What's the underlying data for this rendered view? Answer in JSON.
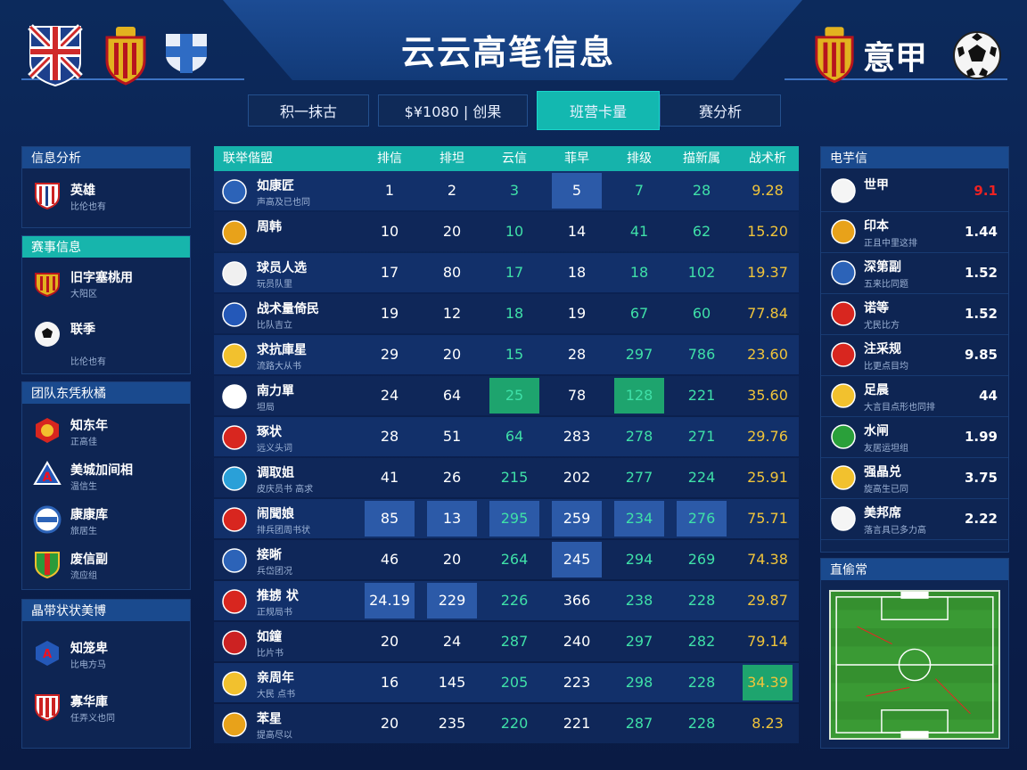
{
  "header": {
    "title": "云云高笔信息",
    "right_label": "意甲"
  },
  "tabs": [
    {
      "label": "积一抹古",
      "active": false
    },
    {
      "label": "$¥1080 | 创果",
      "active": false
    },
    {
      "label": "班营卡量",
      "active": true
    },
    {
      "label": "赛分析",
      "active": false
    }
  ],
  "left": {
    "sections": [
      {
        "title": "信息分析",
        "style": "blue",
        "items": [
          {
            "name": "英雄",
            "sub": "比伦也有"
          }
        ]
      },
      {
        "title": "赛事信息",
        "style": "teal",
        "items": [
          {
            "name": "旧字塞桃用",
            "sub": "大阳区"
          },
          {
            "name": "联季",
            "sub": "比伦也有"
          }
        ]
      },
      {
        "title": "团队东凭秋橘",
        "style": "blue",
        "items": [
          {
            "name": "知东年",
            "sub": "正高佳"
          },
          {
            "name": "美城加间相",
            "sub": "温信生"
          },
          {
            "name": "康康库",
            "sub": "旅居生"
          },
          {
            "name": "废信副 ",
            "sub": "流应组"
          }
        ]
      },
      {
        "title": "晶带状状美博",
        "style": "blue",
        "items": [
          {
            "name": "知笼卑",
            "sub": "比电方马"
          },
          {
            "name": "寡华庫",
            "sub": "任弄义也同"
          }
        ]
      }
    ]
  },
  "table": {
    "columns": [
      "联举偕盟",
      "排信",
      "排坦",
      "云信",
      "菲早",
      "排级",
      "描新属",
      "战术析"
    ],
    "rows": [
      {
        "name": "如康匠",
        "sub": "声高及已也同",
        "cells": [
          "1",
          "2",
          "3",
          "5",
          "7",
          "28",
          "9.28"
        ],
        "hl": [
          3
        ],
        "hg": []
      },
      {
        "name": "周韩",
        "sub": "",
        "cells": [
          "10",
          "20",
          "10",
          "14",
          "41",
          "62",
          "15.20"
        ],
        "hl": [],
        "hg": []
      },
      {
        "name": "球员人选",
        "sub": "玩员队里",
        "cells": [
          "17",
          "80",
          "17",
          "18",
          "18",
          "102",
          "19.37"
        ],
        "hl": [],
        "hg": []
      },
      {
        "name": "战术量倚民",
        "sub": "比队吉立",
        "cells": [
          "19",
          "12",
          "18",
          "19",
          "67",
          "60",
          "77.84"
        ],
        "hl": [],
        "hg": []
      },
      {
        "name": "求抗庫星",
        "sub": "流路大从书",
        "cells": [
          "29",
          "20",
          "15",
          "28",
          "297",
          "786",
          "23.60"
        ],
        "hl": [],
        "hg": []
      },
      {
        "name": "南力單",
        "sub": "坦局",
        "cells": [
          "24",
          "64",
          "25",
          "78",
          "128",
          "221",
          "35.60"
        ],
        "hl": [],
        "hg": [
          2,
          4
        ]
      },
      {
        "name": "琢状",
        "sub": "远义头词",
        "cells": [
          "28",
          "51",
          "64",
          "283",
          "278",
          "271",
          "29.76"
        ],
        "hl": [],
        "hg": []
      },
      {
        "name": "调取姐",
        "sub": "皮庆员书 高求",
        "cells": [
          "41",
          "26",
          "215",
          "202",
          "277",
          "224",
          "25.91"
        ],
        "hl": [],
        "hg": []
      },
      {
        "name": "闹聞娘",
        "sub": "排兵团周书状",
        "cells": [
          "85",
          "13",
          "295",
          "259",
          "234",
          "276",
          "75.71"
        ],
        "hl": [
          0,
          1,
          2,
          3,
          4,
          5
        ],
        "hg": []
      },
      {
        "name": "接晰",
        "sub": "兵岱团况",
        "cells": [
          "46",
          "20",
          "264",
          "245",
          "294",
          "269",
          "74.38"
        ],
        "hl": [
          3
        ],
        "hg": []
      },
      {
        "name": "推掳 状",
        "sub": "正规局书",
        "cells": [
          "24.19",
          "229",
          "226",
          "366",
          "238",
          "228",
          "29.87"
        ],
        "hl": [
          0,
          1
        ],
        "hg": []
      },
      {
        "name": "如鐘",
        "sub": "比片书",
        "cells": [
          "20",
          "24",
          "287",
          "240",
          "297",
          "282",
          "79.14"
        ],
        "hl": [],
        "hg": []
      },
      {
        "name": "亲周年",
        "sub": "大民 点书",
        "cells": [
          "16",
          "145",
          "205",
          "223",
          "298",
          "228",
          "34.39"
        ],
        "hl": [],
        "hg": [
          6
        ]
      },
      {
        "name": "苯星",
        "sub": "提高尽以",
        "cells": [
          "20",
          "235",
          "220",
          "221",
          "287",
          "228",
          "8.23"
        ],
        "hl": [],
        "hg": []
      }
    ]
  },
  "right": {
    "title": "电芋信",
    "items": [
      {
        "name": "世甲",
        "sub": "",
        "value": "9.1",
        "red": true
      },
      {
        "name": "印本",
        "sub": "正且中里这排",
        "value": "1.44",
        "red": false
      },
      {
        "name": "深第副",
        "sub": "五来比同题",
        "value": "1.52",
        "red": false
      },
      {
        "name": "诺等",
        "sub": "尤民比方",
        "value": "1.52",
        "red": false
      },
      {
        "name": "注采规",
        "sub": "比更点目均",
        "value": "9.85",
        "red": false
      },
      {
        "name": "足晨",
        "sub": "大言目点形也同排",
        "value": "44",
        "red": false
      },
      {
        "name": "水闸",
        "sub": "友居运坦组",
        "value": "1.99",
        "red": false
      },
      {
        "name": "强晶兑",
        "sub": "旋高生已同",
        "value": "3.75",
        "red": false
      },
      {
        "name": "美邦席",
        "sub": "落言具已多力高",
        "value": "2.22",
        "red": false
      }
    ],
    "pitch_title": "直偷常"
  }
}
